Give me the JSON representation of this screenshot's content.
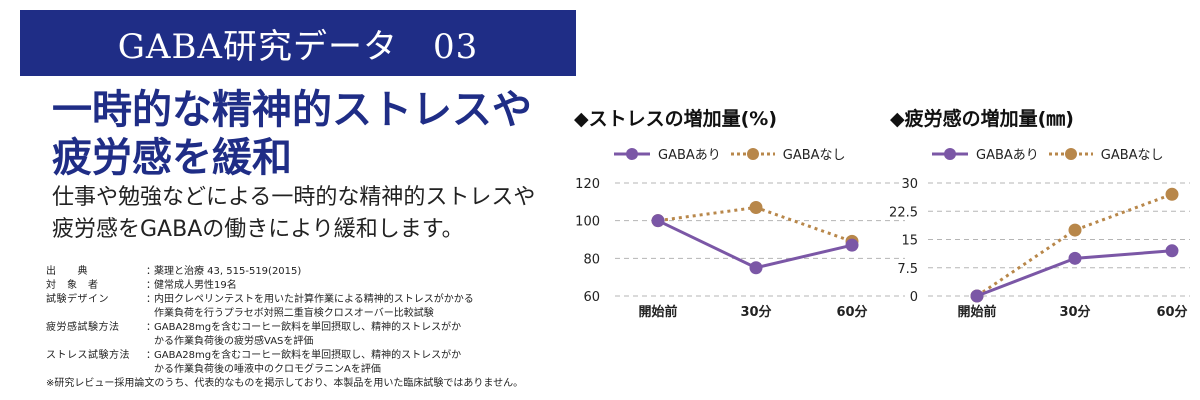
{
  "banner": {
    "title": "GABA研究データ　03"
  },
  "headline": {
    "line1": "一時的な精神的ストレスや",
    "line2": "疲労感を緩和"
  },
  "subtext": {
    "line1": "仕事や勉強などによる一時的な精神的ストレスや",
    "line2": "疲労感をGABAの働きにより緩和します。"
  },
  "references": [
    {
      "label": "出　　典",
      "value": "薬理と治療 43, 515-519(2015)"
    },
    {
      "label": "対　象　者",
      "value": "健常成人男性19名"
    },
    {
      "label": "試験デザイン",
      "value": "内田クレペリンテストを用いた計算作業による精神的ストレスがかかる\n作業負荷を行うプラセボ対照二重盲検クロスオーバー比較試験"
    },
    {
      "label": "疲労感試験方法",
      "value": "GABA28mgを含むコーヒー飲料を単回摂取し、精神的ストレスがか\nかる作業負荷後の疲労感VASを評価"
    },
    {
      "label": "ストレス試験方法",
      "value": "GABA28mgを含むコーヒー飲料を単回摂取し、精神的ストレスがか\nかる作業負荷後の唾液中のクロモグラニンAを評価"
    }
  ],
  "footnote": "※研究レビュー採用論文のうち、代表的なものを掲示しており、本製品を用いた臨床試験ではありません。",
  "colors": {
    "navy": "#1f2d86",
    "purple": "#7b57a6",
    "tan": "#b8874a",
    "grid": "#b5b5b5"
  },
  "legend": {
    "with_gaba": "GABAあり",
    "without_gaba": "GABAなし"
  },
  "chart_data": [
    {
      "type": "line",
      "title": "◆ストレスの増加量(%)",
      "categories": [
        "開始前",
        "30分",
        "60分"
      ],
      "ylim": [
        60,
        120
      ],
      "yticks": [
        "120",
        "100",
        "80",
        "60"
      ],
      "series": [
        {
          "name": "GABAあり",
          "values": [
            100,
            75,
            87
          ],
          "style": "solid"
        },
        {
          "name": "GABAなし",
          "values": [
            100,
            107,
            89
          ],
          "style": "dotted"
        }
      ]
    },
    {
      "type": "line",
      "title": "◆疲労感の増加量(㎜)",
      "categories": [
        "開始前",
        "30分",
        "60分"
      ],
      "ylim": [
        0,
        30
      ],
      "yticks": [
        "30",
        "22.5",
        "15",
        "7.5",
        "0"
      ],
      "series": [
        {
          "name": "GABAあり",
          "values": [
            0,
            10,
            12
          ],
          "style": "solid"
        },
        {
          "name": "GABAなし",
          "values": [
            0,
            17.5,
            27
          ],
          "style": "dotted"
        }
      ]
    }
  ]
}
